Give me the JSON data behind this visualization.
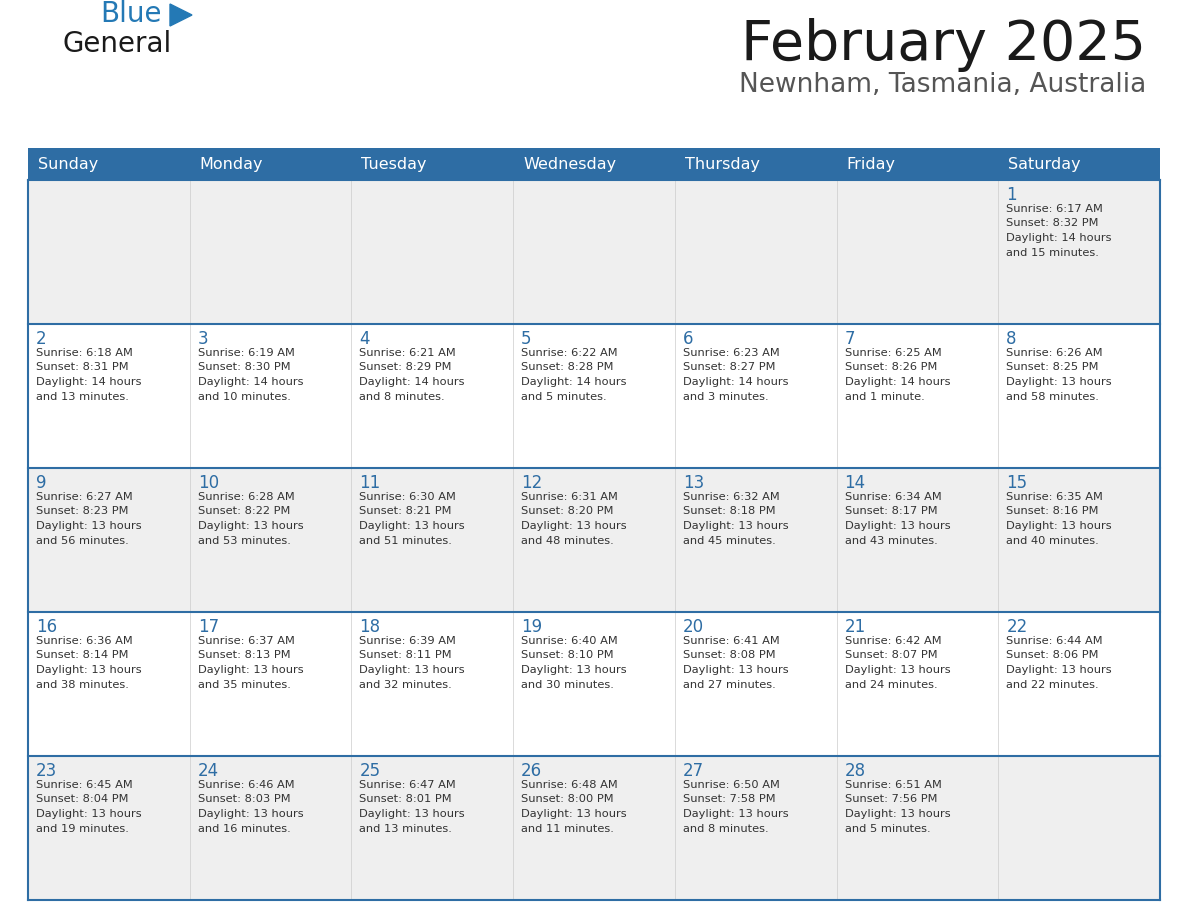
{
  "title": "February 2025",
  "subtitle": "Newnham, Tasmania, Australia",
  "header_color": "#2e6da4",
  "header_text_color": "#ffffff",
  "cell_bg_light": "#efefef",
  "cell_bg_white": "#ffffff",
  "day_number_color": "#2e6da4",
  "text_color": "#333333",
  "line_color": "#2e6da4",
  "days_of_week": [
    "Sunday",
    "Monday",
    "Tuesday",
    "Wednesday",
    "Thursday",
    "Friday",
    "Saturday"
  ],
  "calendar": [
    [
      null,
      null,
      null,
      null,
      null,
      null,
      {
        "day": 1,
        "sunrise": "6:17 AM",
        "sunset": "8:32 PM",
        "daylight": "14 hours\nand 15 minutes."
      }
    ],
    [
      {
        "day": 2,
        "sunrise": "6:18 AM",
        "sunset": "8:31 PM",
        "daylight": "14 hours\nand 13 minutes."
      },
      {
        "day": 3,
        "sunrise": "6:19 AM",
        "sunset": "8:30 PM",
        "daylight": "14 hours\nand 10 minutes."
      },
      {
        "day": 4,
        "sunrise": "6:21 AM",
        "sunset": "8:29 PM",
        "daylight": "14 hours\nand 8 minutes."
      },
      {
        "day": 5,
        "sunrise": "6:22 AM",
        "sunset": "8:28 PM",
        "daylight": "14 hours\nand 5 minutes."
      },
      {
        "day": 6,
        "sunrise": "6:23 AM",
        "sunset": "8:27 PM",
        "daylight": "14 hours\nand 3 minutes."
      },
      {
        "day": 7,
        "sunrise": "6:25 AM",
        "sunset": "8:26 PM",
        "daylight": "14 hours\nand 1 minute."
      },
      {
        "day": 8,
        "sunrise": "6:26 AM",
        "sunset": "8:25 PM",
        "daylight": "13 hours\nand 58 minutes."
      }
    ],
    [
      {
        "day": 9,
        "sunrise": "6:27 AM",
        "sunset": "8:23 PM",
        "daylight": "13 hours\nand 56 minutes."
      },
      {
        "day": 10,
        "sunrise": "6:28 AM",
        "sunset": "8:22 PM",
        "daylight": "13 hours\nand 53 minutes."
      },
      {
        "day": 11,
        "sunrise": "6:30 AM",
        "sunset": "8:21 PM",
        "daylight": "13 hours\nand 51 minutes."
      },
      {
        "day": 12,
        "sunrise": "6:31 AM",
        "sunset": "8:20 PM",
        "daylight": "13 hours\nand 48 minutes."
      },
      {
        "day": 13,
        "sunrise": "6:32 AM",
        "sunset": "8:18 PM",
        "daylight": "13 hours\nand 45 minutes."
      },
      {
        "day": 14,
        "sunrise": "6:34 AM",
        "sunset": "8:17 PM",
        "daylight": "13 hours\nand 43 minutes."
      },
      {
        "day": 15,
        "sunrise": "6:35 AM",
        "sunset": "8:16 PM",
        "daylight": "13 hours\nand 40 minutes."
      }
    ],
    [
      {
        "day": 16,
        "sunrise": "6:36 AM",
        "sunset": "8:14 PM",
        "daylight": "13 hours\nand 38 minutes."
      },
      {
        "day": 17,
        "sunrise": "6:37 AM",
        "sunset": "8:13 PM",
        "daylight": "13 hours\nand 35 minutes."
      },
      {
        "day": 18,
        "sunrise": "6:39 AM",
        "sunset": "8:11 PM",
        "daylight": "13 hours\nand 32 minutes."
      },
      {
        "day": 19,
        "sunrise": "6:40 AM",
        "sunset": "8:10 PM",
        "daylight": "13 hours\nand 30 minutes."
      },
      {
        "day": 20,
        "sunrise": "6:41 AM",
        "sunset": "8:08 PM",
        "daylight": "13 hours\nand 27 minutes."
      },
      {
        "day": 21,
        "sunrise": "6:42 AM",
        "sunset": "8:07 PM",
        "daylight": "13 hours\nand 24 minutes."
      },
      {
        "day": 22,
        "sunrise": "6:44 AM",
        "sunset": "8:06 PM",
        "daylight": "13 hours\nand 22 minutes."
      }
    ],
    [
      {
        "day": 23,
        "sunrise": "6:45 AM",
        "sunset": "8:04 PM",
        "daylight": "13 hours\nand 19 minutes."
      },
      {
        "day": 24,
        "sunrise": "6:46 AM",
        "sunset": "8:03 PM",
        "daylight": "13 hours\nand 16 minutes."
      },
      {
        "day": 25,
        "sunrise": "6:47 AM",
        "sunset": "8:01 PM",
        "daylight": "13 hours\nand 13 minutes."
      },
      {
        "day": 26,
        "sunrise": "6:48 AM",
        "sunset": "8:00 PM",
        "daylight": "13 hours\nand 11 minutes."
      },
      {
        "day": 27,
        "sunrise": "6:50 AM",
        "sunset": "7:58 PM",
        "daylight": "13 hours\nand 8 minutes."
      },
      {
        "day": 28,
        "sunrise": "6:51 AM",
        "sunset": "7:56 PM",
        "daylight": "13 hours\nand 5 minutes."
      },
      null
    ]
  ],
  "logo_text_general": "General",
  "logo_text_blue": "Blue",
  "logo_color_general": "#1a1a1a",
  "logo_color_blue": "#2479b5",
  "fig_width": 11.88,
  "fig_height": 9.18,
  "dpi": 100
}
